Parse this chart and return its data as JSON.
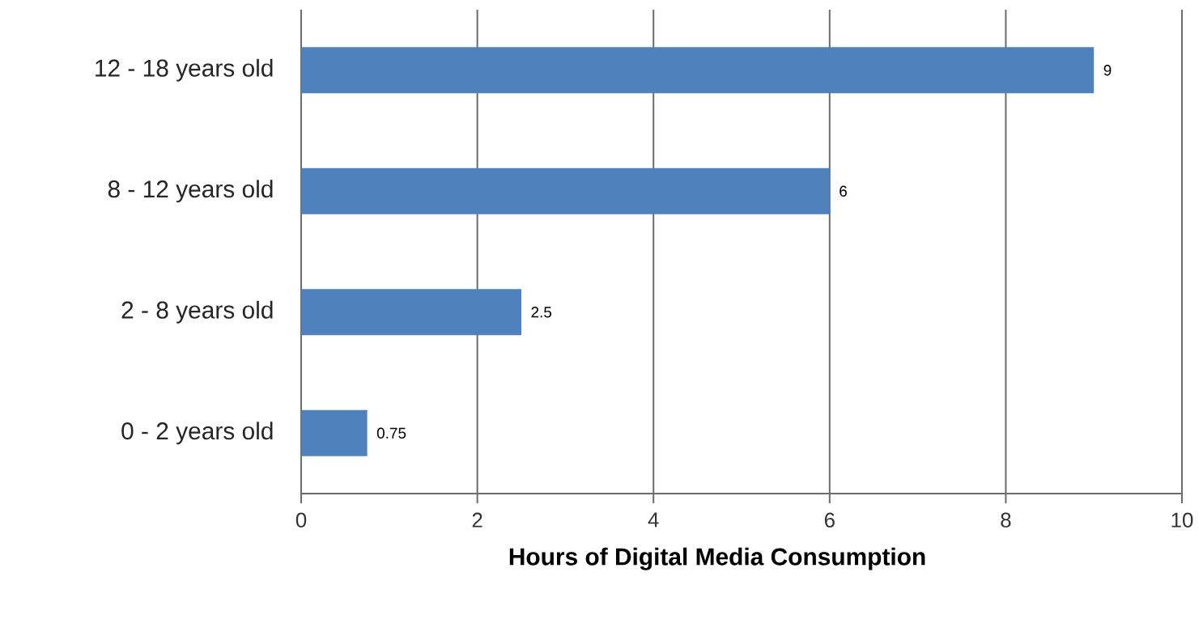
{
  "chart_data": {
    "type": "bar",
    "orientation": "horizontal",
    "xlabel": "Hours of  Digital Media Consumption",
    "categories": [
      "12 - 18 years old",
      "8 - 12 years old",
      "2 - 8 years old",
      "0 - 2 years old"
    ],
    "values": [
      9,
      6,
      2.5,
      0.75
    ],
    "color": "#4f81bd",
    "xlim": [
      0,
      10
    ],
    "xticks": [
      0,
      2,
      4,
      6,
      8,
      10
    ],
    "grid": "x",
    "data_labels": true
  }
}
